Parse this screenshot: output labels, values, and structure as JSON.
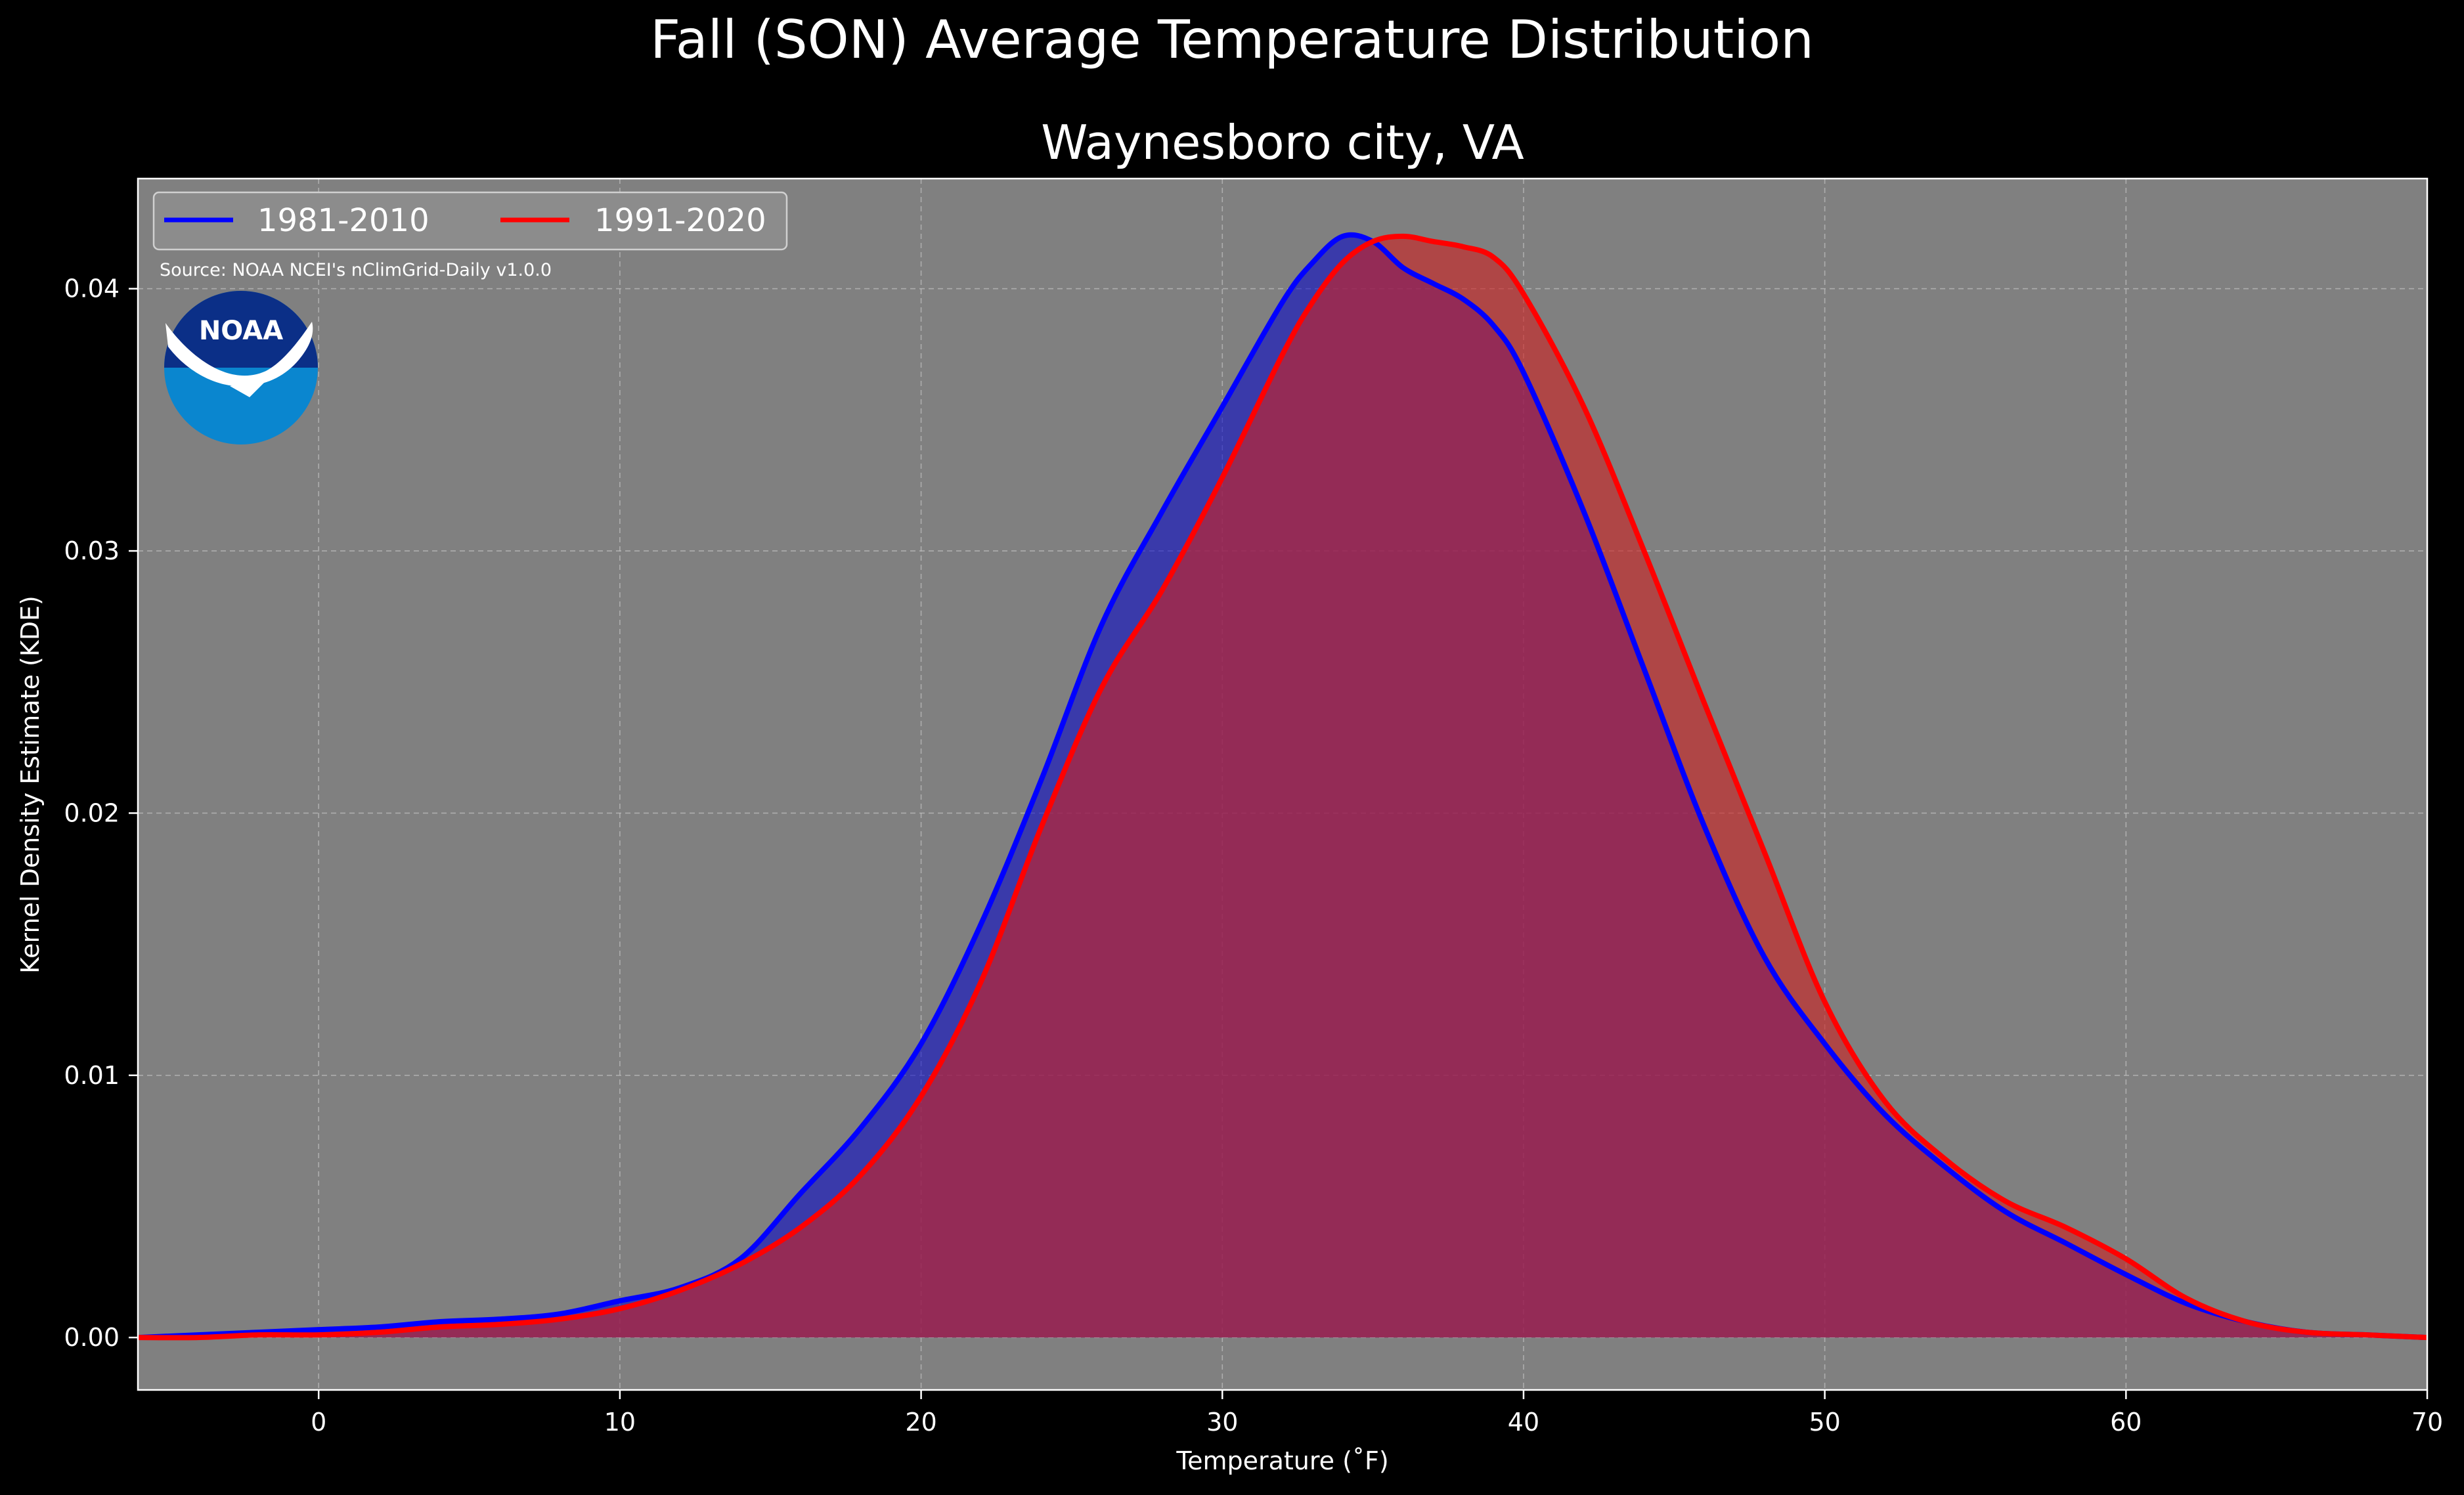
{
  "chart_data": {
    "type": "area",
    "title": "Fall (SON) Average Temperature Distribution",
    "subtitle": "Waynesboro city, VA",
    "xlabel": "Temperature (˚F)",
    "ylabel": "Kernel Density Estimate (KDE)",
    "xlim": [
      -6,
      70
    ],
    "ylim": [
      -0.002,
      0.0442
    ],
    "xticks": [
      0,
      10,
      20,
      30,
      40,
      50,
      60,
      70
    ],
    "yticks": [
      0.0,
      0.01,
      0.02,
      0.03,
      0.04
    ],
    "ytick_labels": [
      "0.00",
      "0.01",
      "0.02",
      "0.03",
      "0.04"
    ],
    "grid": true,
    "legend_position": "top-left",
    "source_note": "Source: NOAA NCEI's nClimGrid-Daily v1.0.0",
    "logo_text": "NOAA",
    "colors": {
      "background": "#000000",
      "plot_background": "#808080",
      "series_1981_2010": "#0000ff",
      "series_1991_2020": "#ff0000"
    },
    "series": [
      {
        "name": "1981-2010",
        "color": "#0000ff",
        "fill": "#0000cc",
        "fill_opacity": 0.55,
        "x": [
          -6,
          -4,
          -2,
          0,
          2,
          4,
          6,
          8,
          10,
          12,
          14,
          16,
          18,
          20,
          22,
          24,
          26,
          28,
          30,
          32,
          33,
          34,
          35,
          36,
          37,
          38,
          39,
          40,
          42,
          44,
          46,
          48,
          50,
          52,
          54,
          56,
          58,
          60,
          62,
          64,
          66,
          68,
          70
        ],
        "y": [
          0.0,
          0.0001,
          0.0002,
          0.0003,
          0.0004,
          0.0006,
          0.0007,
          0.0009,
          0.0014,
          0.0019,
          0.003,
          0.0055,
          0.008,
          0.0112,
          0.0158,
          0.0213,
          0.0272,
          0.0315,
          0.0355,
          0.0395,
          0.041,
          0.042,
          0.0418,
          0.0408,
          0.0402,
          0.0396,
          0.0386,
          0.0368,
          0.0315,
          0.0255,
          0.0195,
          0.0145,
          0.0112,
          0.0085,
          0.0065,
          0.0048,
          0.0036,
          0.0024,
          0.0013,
          0.0006,
          0.0002,
          0.0001,
          0.0
        ]
      },
      {
        "name": "1991-2020",
        "color": "#ff0000",
        "fill": "#cc2222",
        "fill_opacity": 0.62,
        "x": [
          -6,
          -4,
          -2,
          0,
          2,
          4,
          6,
          8,
          10,
          12,
          14,
          16,
          18,
          20,
          22,
          24,
          26,
          28,
          30,
          32,
          33,
          34,
          35,
          36,
          37,
          38,
          39,
          40,
          42,
          44,
          46,
          48,
          50,
          52,
          54,
          56,
          58,
          60,
          62,
          64,
          66,
          68,
          70
        ],
        "y": [
          0.0,
          0.0,
          0.0001,
          0.0001,
          0.0002,
          0.0004,
          0.0005,
          0.0007,
          0.0011,
          0.0018,
          0.0028,
          0.0042,
          0.0062,
          0.0092,
          0.0136,
          0.0195,
          0.0248,
          0.0285,
          0.0328,
          0.0375,
          0.0395,
          0.041,
          0.0418,
          0.042,
          0.0418,
          0.0416,
          0.0412,
          0.0398,
          0.0355,
          0.03,
          0.0242,
          0.0185,
          0.0128,
          0.009,
          0.0068,
          0.0052,
          0.0042,
          0.003,
          0.0015,
          0.0006,
          0.0002,
          0.0001,
          0.0
        ]
      }
    ]
  }
}
